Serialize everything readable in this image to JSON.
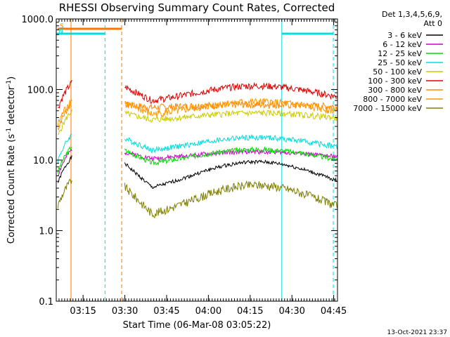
{
  "chart_data": {
    "type": "line",
    "title": "RHESSI Observing Summary Count Rates, Corrected",
    "xlabel": "Start Time (06-Mar-08 03:05:22)",
    "ylabel_main": "Corrected Count Rate (s",
    "ylabel_mid": " detector",
    "ylabel_sup": "-1",
    "ylabel_end": ")",
    "yscale": "log",
    "xlim_minutes": [
      0,
      101
    ],
    "ylim": [
      0.1,
      1000
    ],
    "y_ticks": [
      {
        "value": 1000,
        "label": "1000.0"
      },
      {
        "value": 100,
        "label": "100.0"
      },
      {
        "value": 10,
        "label": "10.0"
      },
      {
        "value": 1,
        "label": "1.0"
      },
      {
        "value": 0.1,
        "label": "0.1"
      }
    ],
    "x_ticks": [
      {
        "minutes": 9.633,
        "label": "03:15"
      },
      {
        "minutes": 24.633,
        "label": "03:30"
      },
      {
        "minutes": 39.633,
        "label": "03:45"
      },
      {
        "minutes": 54.633,
        "label": "04:00"
      },
      {
        "minutes": 69.633,
        "label": "04:15"
      },
      {
        "minutes": 84.633,
        "label": "04:30"
      },
      {
        "minutes": 99.633,
        "label": "04:45"
      }
    ],
    "legend": {
      "header": [
        "Det 1,3,4,5,6,9,",
        "Att 0"
      ],
      "placement": "right"
    },
    "series": [
      {
        "name": "3 - 6 keV",
        "color": "#000000",
        "base": 3.6,
        "peak": 10.5
      },
      {
        "name": "6 - 12 keV",
        "color": "#cc00cc",
        "base": 10.2,
        "peak": 13.5
      },
      {
        "name": "12 - 25 keV",
        "color": "#00dd00",
        "base": 8.5,
        "peak": 15.0
      },
      {
        "name": "25 - 50 keV",
        "color": "#00dddd",
        "base": 13.0,
        "peak": 22.0
      },
      {
        "name": "50 - 100 keV",
        "color": "#cccc00",
        "base": 36.0,
        "peak": 48.0
      },
      {
        "name": "100 - 300 keV",
        "color": "#dd0000",
        "base": 65.0,
        "peak": 120.0
      },
      {
        "name": "300 - 800 keV",
        "color": "#ff8800",
        "base": 55.0,
        "peak": 62.0
      },
      {
        "name": "800 - 7000 keV",
        "color": "#ff9900",
        "base": 42.0,
        "peak": 70.0
      },
      {
        "name": "7000 - 15000 keV",
        "color": "#808000",
        "base": 1.5,
        "peak": 5.0
      }
    ],
    "flags": [
      {
        "label": "S",
        "color": "#ff7700",
        "start_min": 0.5,
        "end_min": 23.5
      },
      {
        "label": "N",
        "color": "#00dddd",
        "start_min": 0.0,
        "end_min": 17.5
      },
      {
        "label": "",
        "color": "#00dddd",
        "start_min": 81.0,
        "end_min": 99.5
      }
    ],
    "vlines": [
      {
        "minutes": 0.0,
        "color": "#00dddd",
        "style": "solid"
      },
      {
        "minutes": 5.3,
        "color": "#ff7700",
        "style": "solid"
      },
      {
        "minutes": 17.5,
        "color": "#00dddd",
        "style": "dashed"
      },
      {
        "minutes": 23.5,
        "color": "#ff7700",
        "style": "dashed"
      },
      {
        "minutes": 81.0,
        "color": "#00dddd",
        "style": "solid"
      },
      {
        "minutes": 99.5,
        "color": "#00dddd",
        "style": "dashed"
      }
    ]
  },
  "footer": {
    "date_stamp": "13-Oct-2021 23:37"
  }
}
